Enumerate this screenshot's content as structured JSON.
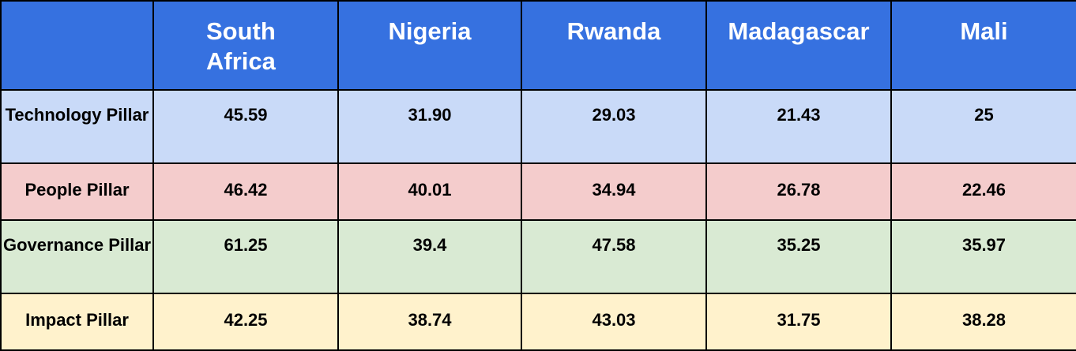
{
  "table": {
    "corner": "",
    "countries": [
      "South Africa",
      "Nigeria",
      "Rwanda",
      "Madagascar",
      "Mali"
    ],
    "header_color": "#3671e0",
    "rows": [
      {
        "label": "Technology Pillar",
        "color": "#c9daf8",
        "values": [
          "45.59",
          "31.90",
          "29.03",
          "21.43",
          "25"
        ]
      },
      {
        "label": "People Pillar",
        "color": "#f4cccc",
        "values": [
          "46.42",
          "40.01",
          "34.94",
          "26.78",
          "22.46"
        ]
      },
      {
        "label": "Governance Pillar",
        "color": "#d9ead3",
        "values": [
          "61.25",
          "39.4",
          "47.58",
          "35.25",
          "35.97"
        ]
      },
      {
        "label": "Impact Pillar",
        "color": "#fff2cc",
        "values": [
          "42.25",
          "38.74",
          "43.03",
          "31.75",
          "38.28"
        ]
      }
    ]
  }
}
